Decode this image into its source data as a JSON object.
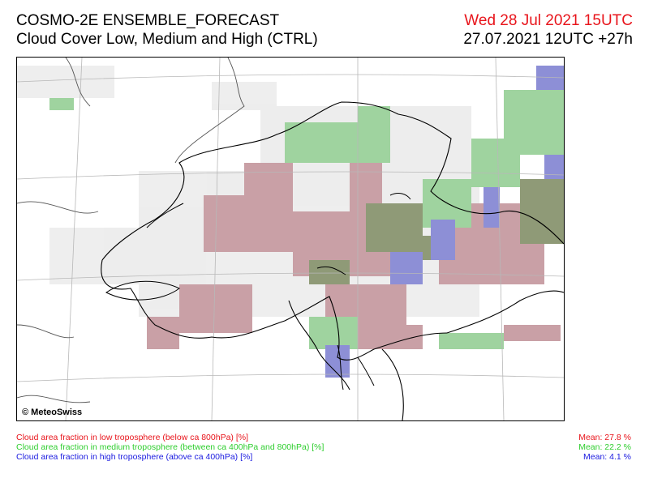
{
  "header": {
    "title": "COSMO-2E ENSEMBLE_FORECAST",
    "subtitle": "Cloud Cover Low, Medium and High (CTRL)",
    "valid_time": "Wed 28 Jul 2021 15UTC",
    "run_time": "27.07.2021 12UTC +27h"
  },
  "map": {
    "copyright": "© MeteoSwiss",
    "colors": {
      "low": "#c9a0a6",
      "medium": "#9fd39f",
      "high": "#8d8fd6",
      "low_medium": "#8f9a77",
      "border": "#000000",
      "grid": "#b8b8b8"
    }
  },
  "legend": {
    "items": [
      {
        "label": "Cloud area fraction in low troposphere (below ca 800hPa) [%]",
        "mean": "Mean:  27.8 %",
        "color": "#e8141b"
      },
      {
        "label": "Cloud area fraction in medium troposphere (between ca 400hPa and 800hPa) [%]",
        "mean": "Mean:  22.2 %",
        "color": "#2fce2f"
      },
      {
        "label": "Cloud area fraction in high troposphere (above ca 400hPa) [%]",
        "mean": "Mean:   4.1 %",
        "color": "#1b1be0"
      }
    ]
  }
}
